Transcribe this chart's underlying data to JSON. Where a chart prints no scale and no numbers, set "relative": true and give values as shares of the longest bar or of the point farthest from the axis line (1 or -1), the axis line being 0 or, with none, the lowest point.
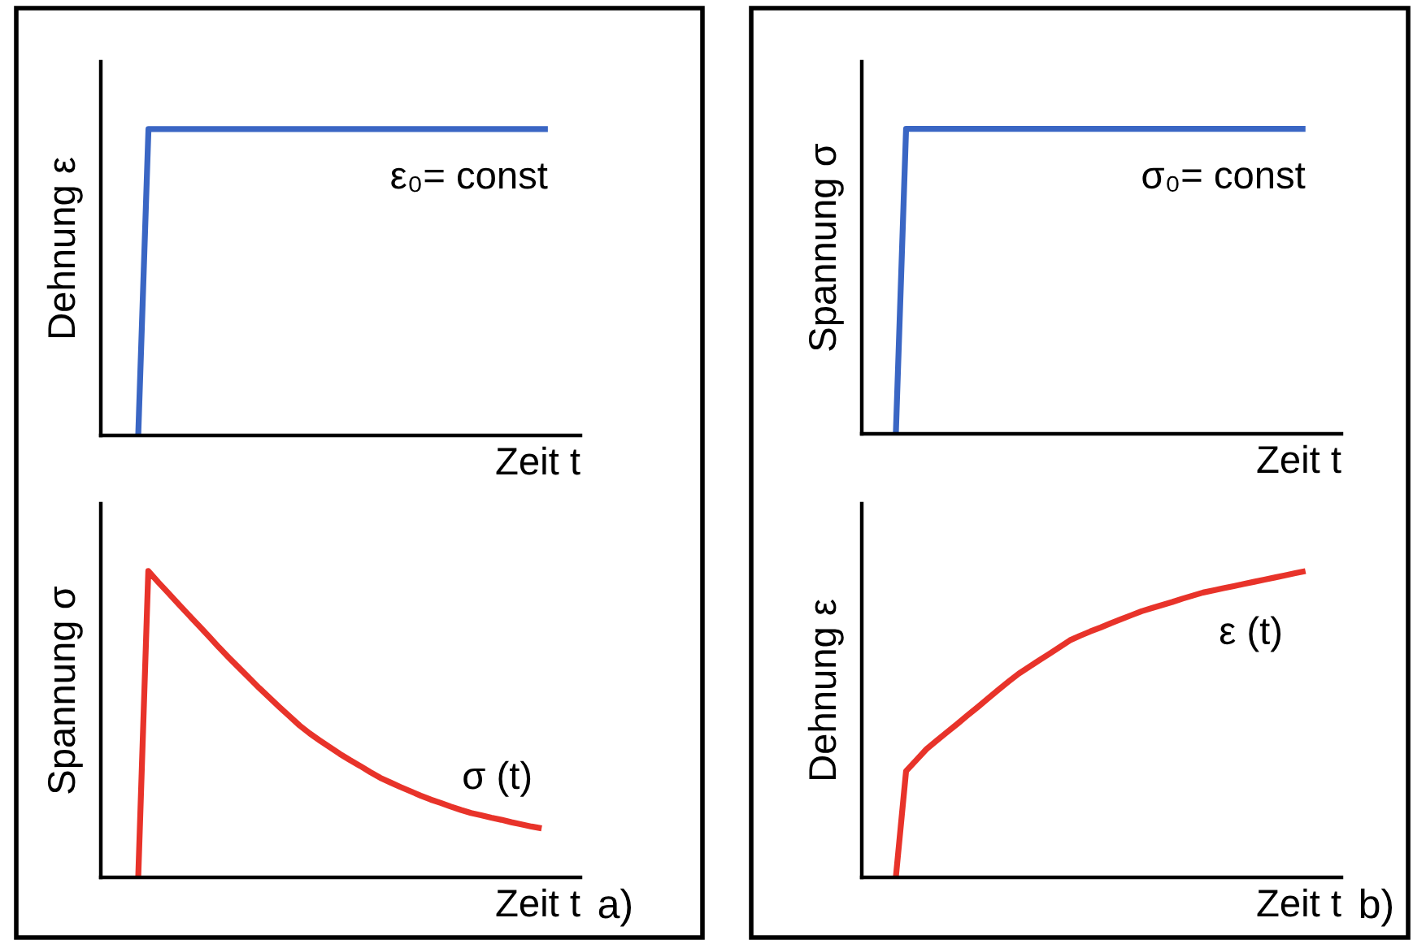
{
  "chart_data": [
    {
      "type": "line",
      "relative": true,
      "ylabel": "Dehnung ε",
      "xlabel": "Zeit t",
      "annotations": [
        "ε₀= const"
      ],
      "categories": [
        null,
        null,
        null,
        null,
        null,
        null,
        null,
        null,
        null,
        null,
        null,
        null,
        null,
        null,
        null,
        null,
        null,
        null,
        null,
        null,
        null,
        null,
        null,
        null,
        null,
        null,
        null,
        null,
        null,
        null,
        null,
        null,
        null,
        null,
        null,
        null,
        null,
        null,
        null,
        null,
        null
      ],
      "series": [
        {
          "color": "#3a66c4",
          "values": [
            0,
            1,
            1,
            1,
            1,
            1,
            1,
            1,
            1,
            1,
            1,
            1,
            1,
            1,
            1,
            1,
            1,
            1,
            1,
            1,
            1,
            1,
            1,
            1,
            1,
            1,
            1,
            1,
            1,
            1,
            1,
            1,
            1,
            1,
            1,
            1,
            1,
            1,
            1,
            1,
            1
          ]
        }
      ]
    },
    {
      "type": "line",
      "relative": true,
      "ylabel": "Spannung σ",
      "xlabel": "Zeit t",
      "annotations": [
        "σ (t)",
        "a)"
      ],
      "categories": [
        null,
        null,
        null,
        null,
        null,
        null,
        null,
        null,
        null,
        null,
        null,
        null,
        null,
        null,
        null,
        null,
        null,
        null,
        null,
        null,
        null,
        null,
        null,
        null,
        null,
        null,
        null,
        null,
        null,
        null,
        null,
        null,
        null,
        null,
        null,
        null,
        null,
        null,
        null,
        null,
        null
      ],
      "series": [
        {
          "color": "#e8332a",
          "values": [
            0,
            1,
            0.963,
            0.928,
            0.892,
            0.857,
            0.822,
            0.787,
            0.751,
            0.717,
            0.684,
            0.651,
            0.618,
            0.587,
            0.556,
            0.526,
            0.496,
            0.47,
            0.447,
            0.425,
            0.403,
            0.383,
            0.364,
            0.344,
            0.325,
            0.31,
            0.295,
            0.281,
            0.267,
            0.254,
            0.243,
            0.231,
            0.22,
            0.21,
            0.203,
            0.195,
            0.188,
            0.18,
            0.173,
            0.166,
            0.16
          ]
        }
      ]
    },
    {
      "type": "line",
      "relative": true,
      "ylabel": "Spannung σ",
      "xlabel": "Zeit t",
      "annotations": [
        "σ₀= const"
      ],
      "categories": [
        null,
        null,
        null,
        null,
        null,
        null,
        null,
        null,
        null,
        null,
        null,
        null,
        null,
        null,
        null,
        null,
        null,
        null,
        null,
        null,
        null,
        null,
        null,
        null,
        null,
        null,
        null,
        null,
        null,
        null,
        null,
        null,
        null,
        null,
        null,
        null,
        null,
        null,
        null,
        null,
        null
      ],
      "series": [
        {
          "color": "#3a66c4",
          "values": [
            0,
            1,
            1,
            1,
            1,
            1,
            1,
            1,
            1,
            1,
            1,
            1,
            1,
            1,
            1,
            1,
            1,
            1,
            1,
            1,
            1,
            1,
            1,
            1,
            1,
            1,
            1,
            1,
            1,
            1,
            1,
            1,
            1,
            1,
            1,
            1,
            1,
            1,
            1,
            1,
            1
          ]
        }
      ]
    },
    {
      "type": "line",
      "relative": true,
      "ylabel": "Dehnung ε",
      "xlabel": "Zeit t",
      "annotations": [
        "ε (t)",
        "b)"
      ],
      "categories": [
        null,
        null,
        null,
        null,
        null,
        null,
        null,
        null,
        null,
        null,
        null,
        null,
        null,
        null,
        null,
        null,
        null,
        null,
        null,
        null,
        null,
        null,
        null,
        null,
        null,
        null,
        null,
        null,
        null,
        null,
        null,
        null,
        null,
        null,
        null,
        null,
        null,
        null,
        null,
        null,
        null
      ],
      "series": [
        {
          "color": "#e8332a",
          "values": [
            0,
            0.347,
            0.383,
            0.419,
            0.447,
            0.474,
            0.501,
            0.529,
            0.556,
            0.584,
            0.612,
            0.639,
            0.665,
            0.687,
            0.709,
            0.73,
            0.752,
            0.774,
            0.789,
            0.803,
            0.816,
            0.83,
            0.843,
            0.856,
            0.869,
            0.879,
            0.889,
            0.899,
            0.91,
            0.92,
            0.93,
            0.937,
            0.944,
            0.951,
            0.958,
            0.965,
            0.972,
            0.979,
            0.986,
            0.993,
            1
          ]
        }
      ]
    }
  ]
}
